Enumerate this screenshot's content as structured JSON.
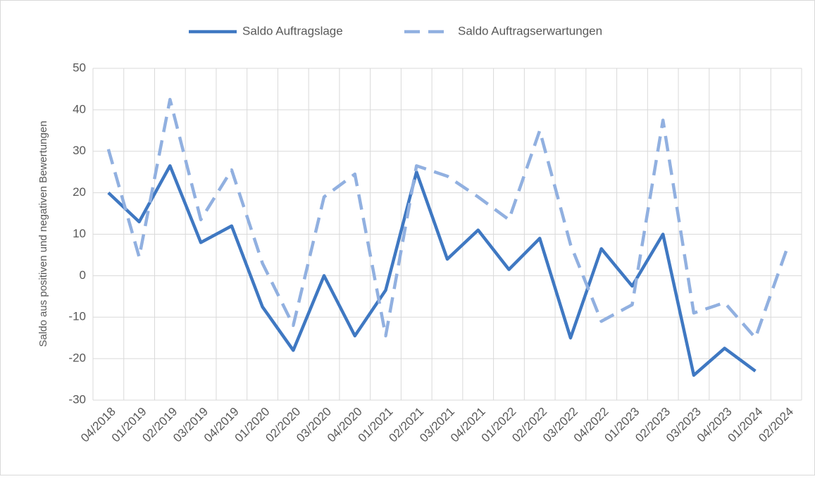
{
  "chart_data": {
    "type": "line",
    "y_label": "Saldo aus positiven und negativen Bewertungen",
    "categories": [
      "04/2018",
      "01/2019",
      "02/2019",
      "03/2019",
      "04/2019",
      "01/2020",
      "02/2020",
      "03/2020",
      "04/2020",
      "01/2021",
      "02/2021",
      "03/2021",
      "04/2021",
      "01/2022",
      "02/2022",
      "03/2022",
      "04/2022",
      "01/2023",
      "02/2023",
      "03/2023",
      "04/2023",
      "01/2024",
      "02/2024"
    ],
    "series": [
      {
        "name": "Saldo Auftragslage",
        "color": "#3f78c2",
        "dashed": false,
        "values": [
          20,
          13,
          26.5,
          8,
          12,
          -7.5,
          -18,
          0,
          -14.5,
          -3.5,
          25,
          4,
          11,
          1.5,
          9,
          -15,
          6.5,
          -2.5,
          10,
          -24,
          -17.5,
          -23,
          null
        ]
      },
      {
        "name": "Saldo Auftragserwartungen",
        "color": "#91b0e0",
        "dashed": true,
        "values": [
          30.5,
          4.5,
          42.5,
          13.5,
          25.5,
          3,
          -12,
          19,
          24.5,
          -14.5,
          26.5,
          24,
          19,
          13.5,
          35,
          7.5,
          -11,
          -7,
          37.5,
          -9,
          -6.5,
          -15,
          6
        ]
      }
    ],
    "ylim": [
      -30,
      50
    ],
    "yticks": [
      -30,
      -20,
      -10,
      0,
      10,
      20,
      30,
      40,
      50
    ],
    "grid": true,
    "legend": "top"
  }
}
